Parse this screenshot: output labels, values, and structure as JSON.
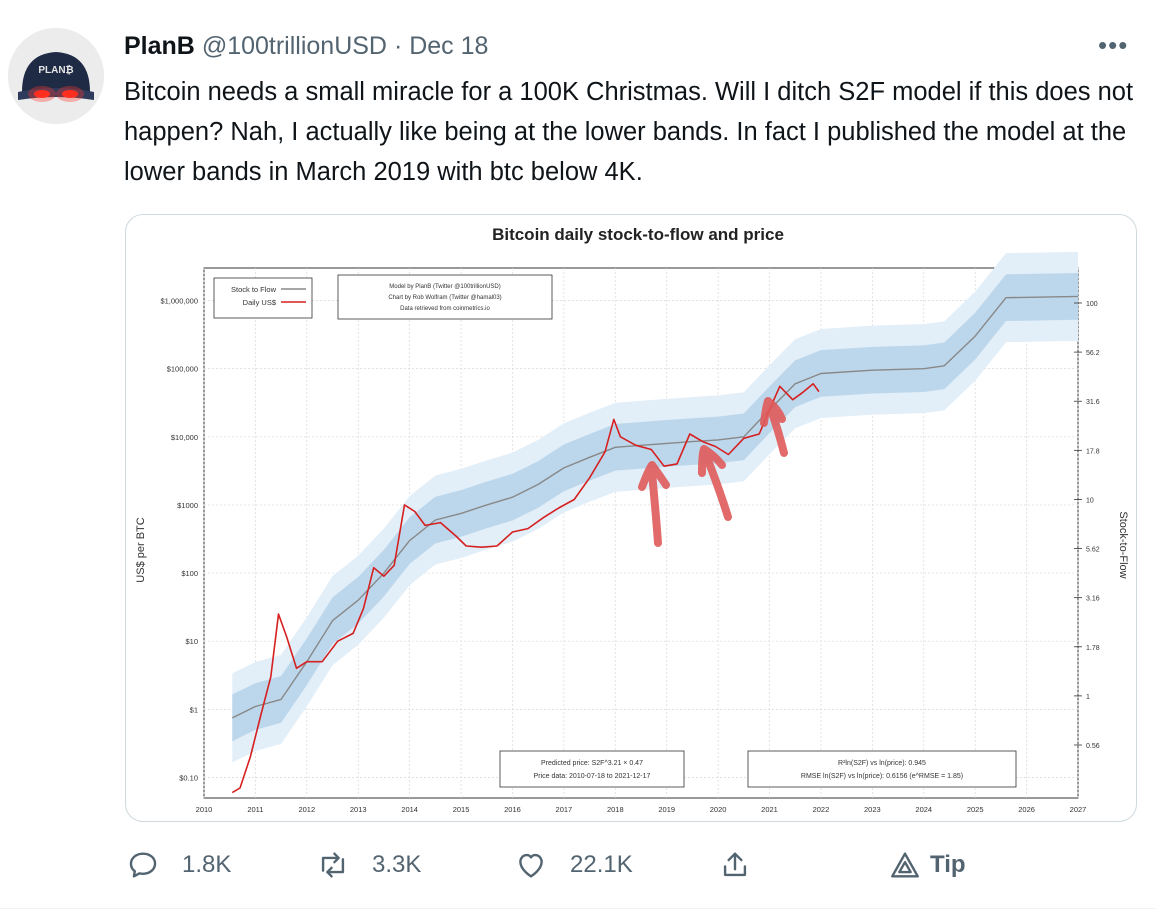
{
  "tweet": {
    "author_name": "PlanB",
    "handle": "@100trillionUSD",
    "separator": "·",
    "date": "Dec 18",
    "more_label": "•••",
    "avatar_text": "PLAN₿",
    "text": "Bitcoin needs a small miracle for a 100K Christmas. Will I ditch S2F model if this does not happen? Nah, I actually like being at the lower bands. In fact I published the model at the lower bands in March 2019 with btc below 4K."
  },
  "actions": {
    "replies": "1.8K",
    "retweets": "3.3K",
    "likes": "22.1K",
    "tip": "Tip"
  },
  "chart_data": {
    "type": "line",
    "title": "Bitcoin daily stock-to-flow and price",
    "ylabel": "US$ per BTC",
    "y2label": "Stock-to-Flow",
    "y_scale": "log",
    "ylim": [
      0.05,
      3000000
    ],
    "xlim": [
      2010,
      2027
    ],
    "x_ticks": [
      "2010",
      "2011",
      "2012",
      "2013",
      "2014",
      "2015",
      "2016",
      "2017",
      "2018",
      "2019",
      "2020",
      "2021",
      "2022",
      "2023",
      "2024",
      "2025",
      "2026",
      "2027"
    ],
    "y_ticks": [
      "$1,000,000",
      "$100,000",
      "$10,000",
      "$1000",
      "$100",
      "$10",
      "$1",
      "$0.10"
    ],
    "y_tick_values": [
      1000000,
      100000,
      10000,
      1000,
      100,
      10,
      1,
      0.1
    ],
    "y2_ticks": [
      "100",
      "56.2",
      "31.6",
      "17.8",
      "10",
      "5.62",
      "3.16",
      "1.78",
      "1",
      "0.56"
    ],
    "grid": true,
    "legend": {
      "placement": "top-left",
      "entries": [
        {
          "label": "Stock to Flow",
          "color": "#888888"
        },
        {
          "label": "Daily US$",
          "color": "#d62020"
        }
      ]
    },
    "credits": [
      "Model by PlanB (Twitter @100trillionUSD)",
      "Chart by Rob Wolfram (Twitter @hamal03)",
      "Data retrieved from coinmetrics.io"
    ],
    "annotation_left": [
      "Predicted price: S2F^3.21 × 0.47",
      "Price data: 2010-07-18 to 2021-12-17"
    ],
    "annotation_right": [
      "R²ln(S2F) vs ln(price): 0.945",
      "RMSE ln(S2F) vs ln(price): 0.6156 (e^RMSE = 1.85)"
    ],
    "series": [
      {
        "name": "Stock to Flow",
        "color": "#888888",
        "x": [
          2010.55,
          2011.0,
          2011.5,
          2012.0,
          2012.5,
          2013.0,
          2013.5,
          2014.0,
          2014.5,
          2015.0,
          2015.5,
          2016.0,
          2016.5,
          2017.0,
          2017.5,
          2018.0,
          2018.5,
          2019.0,
          2019.5,
          2020.0,
          2020.5,
          2021.0,
          2021.5,
          2022.0,
          2023.0,
          2024.0,
          2024.4,
          2025.0,
          2025.6,
          2027.0
        ],
        "y": [
          0.75,
          1.1,
          1.4,
          5,
          20,
          40,
          100,
          300,
          600,
          750,
          1000,
          1300,
          2000,
          3500,
          5000,
          7000,
          7500,
          8000,
          8500,
          9000,
          10000,
          25000,
          60000,
          85000,
          95000,
          100000,
          110000,
          300000,
          1100000,
          1150000
        ]
      },
      {
        "name": "Daily US$",
        "color": "#d62020",
        "x": [
          2010.55,
          2010.7,
          2010.9,
          2011.1,
          2011.3,
          2011.45,
          2011.6,
          2011.8,
          2012.0,
          2012.3,
          2012.6,
          2012.9,
          2013.1,
          2013.3,
          2013.5,
          2013.7,
          2013.9,
          2014.1,
          2014.3,
          2014.6,
          2014.9,
          2015.1,
          2015.4,
          2015.7,
          2016.0,
          2016.3,
          2016.6,
          2016.9,
          2017.2,
          2017.5,
          2017.8,
          2017.97,
          2018.1,
          2018.4,
          2018.7,
          2018.95,
          2019.2,
          2019.45,
          2019.7,
          2019.95,
          2020.2,
          2020.5,
          2020.8,
          2021.0,
          2021.2,
          2021.45,
          2021.65,
          2021.85,
          2021.96
        ],
        "y": [
          0.06,
          0.07,
          0.2,
          0.8,
          3,
          25,
          12,
          4,
          5,
          5,
          10,
          13,
          30,
          120,
          90,
          130,
          1000,
          800,
          500,
          550,
          350,
          250,
          240,
          250,
          400,
          450,
          650,
          900,
          1200,
          2500,
          6000,
          18000,
          10000,
          7500,
          6500,
          3700,
          4000,
          11000,
          8500,
          7200,
          5500,
          9500,
          11000,
          25000,
          55000,
          35000,
          45000,
          60000,
          46000
        ]
      }
    ],
    "annotation_arrows": 3,
    "colors": {
      "band_outer": "#e2eef8",
      "band_inner": "#bcd7ec",
      "price": "#d62020",
      "s2f": "#888888",
      "arrow": "#e05a5a"
    }
  }
}
